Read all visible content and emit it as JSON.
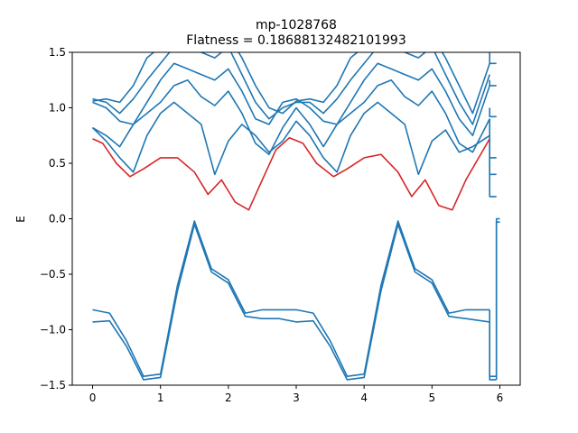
{
  "chart_data": {
    "type": "line",
    "title": "mp-1028768",
    "subtitle": "Flatness = 0.18688132482101993",
    "xlabel": "",
    "ylabel": "E",
    "xlim": [
      -0.3,
      6.3
    ],
    "ylim": [
      -1.5,
      1.5
    ],
    "xticks": [
      "0",
      "1",
      "2",
      "3",
      "4",
      "5",
      "6"
    ],
    "yticks": [
      "−1.5",
      "−1.0",
      "−0.5",
      "0.0",
      "0.5",
      "1.0",
      "1.5"
    ],
    "grid": false,
    "colors": {
      "band": "#1f77b4",
      "flat_band": "#d62728"
    },
    "series": [
      {
        "x": [
          0,
          0.25,
          0.5,
          0.75,
          1.0,
          1.25,
          1.5,
          1.75,
          2.0,
          2.25,
          2.5,
          2.75,
          3.0,
          3.25,
          3.5,
          3.75,
          4.0,
          4.25,
          4.5,
          4.75,
          5.0,
          5.25,
          5.5,
          5.85
        ],
        "values": [
          -0.82,
          -0.85,
          -1.1,
          -1.42,
          -1.4,
          -0.6,
          -0.02,
          -0.45,
          -0.55,
          -0.85,
          -0.82,
          -0.82,
          -0.82,
          -0.85,
          -1.1,
          -1.42,
          -1.4,
          -0.6,
          -0.02,
          -0.45,
          -0.55,
          -0.85,
          -0.82,
          -0.82
        ]
      },
      {
        "x": [
          0,
          0.25,
          0.5,
          0.75,
          1.0,
          1.25,
          1.5,
          1.75,
          2.0,
          2.25,
          2.5,
          2.75,
          3.0,
          3.25,
          3.5,
          3.75,
          4.0,
          4.25,
          4.5,
          4.75,
          5.0,
          5.25,
          5.5,
          5.85
        ],
        "values": [
          -0.93,
          -0.92,
          -1.15,
          -1.45,
          -1.43,
          -0.65,
          -0.05,
          -0.48,
          -0.58,
          -0.88,
          -0.9,
          -0.9,
          -0.93,
          -0.92,
          -1.15,
          -1.45,
          -1.43,
          -0.65,
          -0.05,
          -0.48,
          -0.58,
          -0.88,
          -0.9,
          -0.93
        ]
      },
      {
        "x": [
          0,
          0.15,
          0.35,
          0.55,
          0.75,
          1.0,
          1.25,
          1.5,
          1.7,
          1.9,
          2.1,
          2.3,
          2.5,
          2.7,
          2.9,
          3.1,
          3.3,
          3.55,
          3.75,
          4.0,
          4.25,
          4.5,
          4.7,
          4.9,
          5.1,
          5.3,
          5.5,
          5.85
        ],
        "values": [
          0.72,
          0.68,
          0.5,
          0.38,
          0.45,
          0.55,
          0.55,
          0.42,
          0.22,
          0.35,
          0.15,
          0.08,
          0.35,
          0.62,
          0.73,
          0.68,
          0.5,
          0.38,
          0.45,
          0.55,
          0.58,
          0.42,
          0.2,
          0.35,
          0.12,
          0.08,
          0.35,
          0.72
        ]
      },
      {
        "x": [
          0,
          0.2,
          0.4,
          0.6,
          0.8,
          1.0,
          1.2,
          1.4,
          1.6,
          1.8,
          2.0,
          2.2,
          2.4,
          2.6,
          2.8,
          3.0,
          3.2,
          3.4,
          3.6,
          3.8,
          4.0,
          4.2,
          4.4,
          4.6,
          4.8,
          5.0,
          5.2,
          5.4,
          5.6,
          5.85
        ],
        "values": [
          0.82,
          0.7,
          0.55,
          0.42,
          0.75,
          0.95,
          1.05,
          0.95,
          0.85,
          0.4,
          0.7,
          0.85,
          0.75,
          0.6,
          0.7,
          0.88,
          0.75,
          0.55,
          0.42,
          0.75,
          0.95,
          1.05,
          0.95,
          0.85,
          0.4,
          0.7,
          0.8,
          0.6,
          0.65,
          0.75
        ]
      },
      {
        "x": [
          0,
          0.2,
          0.4,
          0.6,
          0.8,
          1.0,
          1.2,
          1.4,
          1.6,
          1.8,
          2.0,
          2.2,
          2.4,
          2.6,
          2.8,
          3.0,
          3.2,
          3.4,
          3.6,
          3.8,
          4.0,
          4.2,
          4.4,
          4.6,
          4.8,
          5.0,
          5.2,
          5.4,
          5.6,
          5.85
        ],
        "values": [
          0.82,
          0.75,
          0.65,
          0.85,
          0.95,
          1.05,
          1.2,
          1.25,
          1.1,
          1.02,
          1.15,
          0.95,
          0.68,
          0.58,
          0.82,
          1.0,
          0.85,
          0.65,
          0.85,
          0.95,
          1.05,
          1.2,
          1.25,
          1.1,
          1.02,
          1.15,
          0.95,
          0.68,
          0.6,
          0.9
        ]
      },
      {
        "x": [
          0,
          0.2,
          0.4,
          0.6,
          0.8,
          1.0,
          1.2,
          1.4,
          1.6,
          1.8,
          2.0,
          2.2,
          2.4,
          2.6,
          2.8,
          3.0,
          3.2,
          3.4,
          3.6,
          3.8,
          4.0,
          4.2,
          4.4,
          4.6,
          4.8,
          5.0,
          5.2,
          5.4,
          5.6,
          5.85
        ],
        "values": [
          1.05,
          1.0,
          0.88,
          0.85,
          1.05,
          1.25,
          1.4,
          1.35,
          1.3,
          1.25,
          1.35,
          1.15,
          0.9,
          0.85,
          1.05,
          1.08,
          1.0,
          0.88,
          0.85,
          1.05,
          1.25,
          1.4,
          1.35,
          1.3,
          1.25,
          1.35,
          1.15,
          0.9,
          0.75,
          1.2
        ]
      },
      {
        "x": [
          0,
          0.2,
          0.4,
          0.6,
          0.8,
          1.0,
          1.2,
          1.4,
          1.6,
          1.8,
          2.0,
          2.2,
          2.4,
          2.6,
          2.8,
          3.0,
          3.2,
          3.4,
          3.6,
          3.8,
          4.0,
          4.2,
          4.4,
          4.6,
          4.8,
          5.0,
          5.2,
          5.4,
          5.6,
          5.85
        ],
        "values": [
          1.08,
          1.05,
          0.95,
          1.08,
          1.25,
          1.4,
          1.55,
          1.6,
          1.5,
          1.45,
          1.55,
          1.3,
          1.05,
          0.9,
          1.0,
          1.05,
          1.05,
          0.95,
          1.08,
          1.25,
          1.4,
          1.55,
          1.6,
          1.5,
          1.45,
          1.55,
          1.3,
          1.05,
          0.85,
          1.3
        ]
      },
      {
        "x": [
          0,
          0.2,
          0.4,
          0.6,
          0.8,
          1.0,
          1.2,
          1.4,
          1.6,
          1.8,
          2.0,
          2.2,
          2.4,
          2.6,
          2.8,
          3.0,
          3.2,
          3.4,
          3.6,
          3.8,
          4.0,
          4.2,
          4.4,
          4.6,
          4.8,
          5.0,
          5.2,
          5.4,
          5.6,
          5.85
        ],
        "values": [
          1.06,
          1.08,
          1.05,
          1.2,
          1.45,
          1.55,
          1.65,
          1.7,
          1.65,
          1.55,
          1.65,
          1.45,
          1.2,
          1.0,
          0.95,
          1.06,
          1.08,
          1.05,
          1.2,
          1.45,
          1.55,
          1.65,
          1.7,
          1.65,
          1.55,
          1.65,
          1.45,
          1.2,
          0.95,
          1.4
        ]
      }
    ],
    "flat_band_series_index": 2,
    "trailing_segments": [
      {
        "x": [
          5.85,
          5.85,
          5.95,
          5.95
        ],
        "values": [
          1.55,
          1.4,
          1.4,
          1.4
        ]
      },
      {
        "x": [
          5.85,
          5.85,
          5.95,
          5.95
        ],
        "values": [
          1.25,
          1.2,
          1.2,
          1.2
        ]
      },
      {
        "x": [
          5.85,
          5.85,
          5.95
        ],
        "values": [
          1.0,
          0.92,
          0.92
        ]
      },
      {
        "x": [
          5.85,
          5.85,
          5.95
        ],
        "values": [
          0.9,
          0.4,
          0.4
        ]
      },
      {
        "x": [
          5.85,
          5.85,
          5.95
        ],
        "values": [
          0.72,
          0.55,
          0.55
        ]
      },
      {
        "x": [
          5.85,
          5.85,
          5.95
        ],
        "values": [
          0.55,
          0.2,
          0.2
        ]
      },
      {
        "x": [
          5.95,
          5.95,
          6.0
        ],
        "values": [
          -1.42,
          0.0,
          0.0
        ]
      },
      {
        "x": [
          5.95,
          5.95,
          6.0
        ],
        "values": [
          -1.45,
          -0.03,
          -0.03
        ]
      },
      {
        "x": [
          5.85,
          5.85,
          5.95
        ],
        "values": [
          -0.82,
          -1.42,
          -1.42
        ]
      },
      {
        "x": [
          5.85,
          5.85,
          5.95
        ],
        "values": [
          -0.93,
          -1.45,
          -1.45
        ]
      }
    ]
  }
}
